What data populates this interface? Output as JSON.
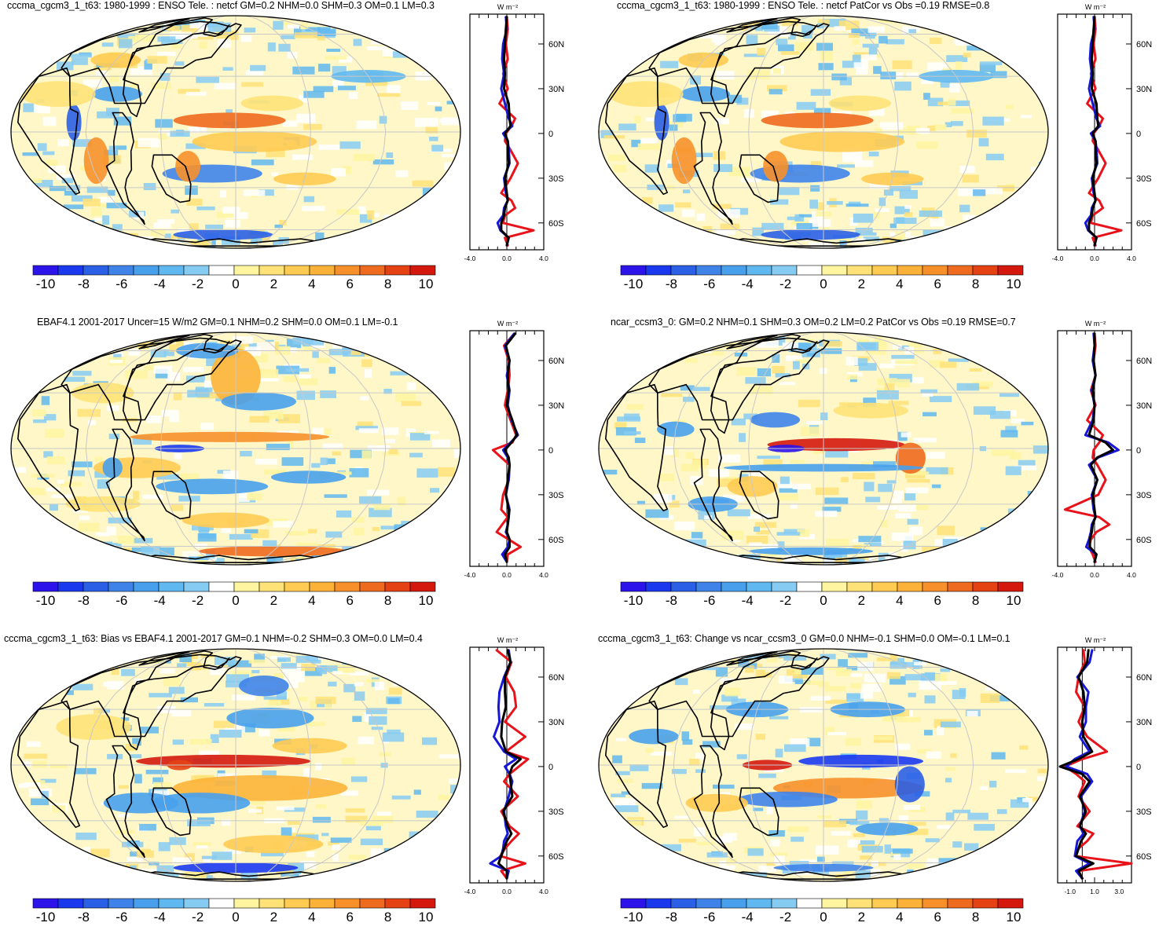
{
  "colors": {
    "scale": [
      "#2c13ea",
      "#1a39ef",
      "#2a5fe6",
      "#3f83e9",
      "#48a0ec",
      "#60b8f0",
      "#86cbf2",
      "#ffffff",
      "#fff4a0",
      "#ffe277",
      "#ffcb52",
      "#fcb238",
      "#f7902a",
      "#ee6a1e",
      "#e54214",
      "#d4180d"
    ],
    "obs_line": "#e8131a",
    "model_line": "#1717d8",
    "diff_line": "#000000",
    "coast": "#000000",
    "grid": "#c8c8c8"
  },
  "chart_data": [
    {
      "type": "heatmap",
      "title": "cccma_cgcm3_1_t63: 1980-1999 : ENSO Tele. : netcf GM=0.2 NHM=0.0 SHM=0.3 OM=0.1 LM=0.3",
      "colorbar_ticks": [
        "-10",
        "-8",
        "-6",
        "-4",
        "-2",
        "0",
        "2",
        "4",
        "6",
        "8",
        "10"
      ],
      "zonal": {
        "unit": "W m⁻²",
        "xlim": [
          -4.0,
          4.0
        ],
        "xticks": [
          "-4.0",
          "0.0",
          "4.0"
        ],
        "lat_ticks": [
          "60N",
          "30N",
          "0",
          "30S",
          "60S"
        ],
        "lat": [
          78,
          70,
          60,
          50,
          40,
          30,
          20,
          10,
          5,
          0,
          -5,
          -10,
          -20,
          -30,
          -40,
          -45,
          -50,
          -55,
          -60,
          -65,
          -70,
          -75
        ],
        "series": [
          {
            "name": "obs",
            "values": [
              0.0,
              0.1,
              -0.1,
              0.1,
              -0.4,
              0.1,
              -0.8,
              0.9,
              0.5,
              -0.1,
              -0.2,
              0.3,
              1.2,
              0.4,
              -0.6,
              0.5,
              0.9,
              -0.2,
              -0.4,
              2.9,
              -0.2,
              0.1
            ]
          },
          {
            "name": "model",
            "values": [
              -0.1,
              0.0,
              -0.4,
              -0.5,
              -0.3,
              -0.6,
              -0.2,
              0.2,
              0.6,
              -0.4,
              0.1,
              0.2,
              0.3,
              -0.3,
              -0.1,
              0.1,
              -0.3,
              -0.4,
              -1.0,
              -0.7,
              0.2,
              0.0
            ]
          },
          {
            "name": "difference",
            "values": [
              0.0,
              -0.1,
              -0.2,
              -0.3,
              -0.2,
              -0.3,
              0.2,
              0.3,
              0.4,
              -0.2,
              0.1,
              0.1,
              0.2,
              -0.2,
              0.0,
              0.1,
              -0.2,
              -0.3,
              -0.6,
              -0.6,
              0.2,
              0.0
            ]
          }
        ]
      }
    },
    {
      "type": "heatmap",
      "title": "cccma_cgcm3_1_t63: 1980-1999 : ENSO Tele. : netcf PatCor vs Obs =0.19 RMSE=0.8",
      "colorbar_ticks": [
        "-10",
        "-8",
        "-6",
        "-4",
        "-2",
        "0",
        "2",
        "4",
        "6",
        "8",
        "10"
      ],
      "zonal": {
        "unit": "W m⁻²",
        "xlim": [
          -4.0,
          4.0
        ],
        "xticks": [
          "-4.0",
          "0.0",
          "4.0"
        ],
        "lat_ticks": [
          "60N",
          "30N",
          "0",
          "30S",
          "60S"
        ],
        "lat": [
          78,
          70,
          60,
          50,
          40,
          30,
          20,
          10,
          5,
          0,
          -5,
          -10,
          -20,
          -30,
          -40,
          -45,
          -50,
          -55,
          -60,
          -65,
          -70,
          -75
        ],
        "series": [
          {
            "name": "obs",
            "values": [
              0.0,
              0.1,
              -0.1,
              0.1,
              -0.4,
              0.1,
              -0.8,
              0.9,
              0.5,
              -0.1,
              -0.2,
              0.3,
              1.2,
              0.4,
              -0.6,
              0.5,
              0.9,
              -0.2,
              -0.4,
              2.9,
              -0.2,
              0.1
            ]
          },
          {
            "name": "model",
            "values": [
              -0.1,
              0.0,
              -0.4,
              -0.5,
              -0.3,
              -0.6,
              -0.2,
              0.2,
              0.6,
              -0.4,
              0.1,
              0.2,
              0.3,
              -0.3,
              -0.1,
              0.1,
              -0.3,
              -0.4,
              -1.0,
              -0.7,
              0.2,
              0.0
            ]
          },
          {
            "name": "difference",
            "values": [
              0.0,
              -0.1,
              -0.2,
              -0.3,
              -0.2,
              -0.3,
              0.2,
              0.3,
              0.4,
              -0.2,
              0.1,
              0.1,
              0.2,
              -0.2,
              0.0,
              0.1,
              -0.2,
              -0.3,
              -0.6,
              -0.6,
              0.2,
              0.0
            ]
          }
        ]
      }
    },
    {
      "type": "heatmap",
      "title": "EBAF4.1 2001-2017 Uncer=15 W/m2 GM=0.1 NHM=0.2 SHM=0.0 OM=0.1 LM=-0.1",
      "colorbar_ticks": [
        "-10",
        "-8",
        "-6",
        "-4",
        "-2",
        "0",
        "2",
        "4",
        "6",
        "8",
        "10"
      ],
      "zonal": {
        "unit": "W m⁻²",
        "xlim": [
          -4.0,
          4.0
        ],
        "xticks": [
          "-4.0",
          "0.0",
          "4.0"
        ],
        "lat_ticks": [
          "60N",
          "30N",
          "0",
          "30S",
          "60S"
        ],
        "lat": [
          78,
          70,
          60,
          50,
          40,
          30,
          20,
          10,
          5,
          0,
          -5,
          -10,
          -20,
          -30,
          -40,
          -45,
          -50,
          -55,
          -60,
          -65,
          -70,
          -75
        ],
        "series": [
          {
            "name": "obs",
            "values": [
              0.8,
              -0.3,
              0.2,
              0.3,
              0.1,
              -0.2,
              0.4,
              1.0,
              0.6,
              -1.5,
              -0.6,
              0.3,
              0.2,
              -0.4,
              -0.6,
              0.1,
              -0.5,
              -1.1,
              0.2,
              1.5,
              0.1,
              0.0
            ]
          },
          {
            "name": "model",
            "values": [
              0.8,
              -0.2,
              0.3,
              0.0,
              0.3,
              0.1,
              0.5,
              1.2,
              0.4,
              -0.4,
              0.1,
              0.3,
              0.2,
              -0.1,
              0.3,
              0.2,
              0.1,
              -0.1,
              0.3,
              0.1,
              -0.5,
              0.0
            ]
          },
          {
            "name": "difference",
            "values": [
              0.9,
              -0.1,
              0.3,
              0.1,
              0.2,
              0.0,
              0.6,
              1.1,
              0.5,
              -0.2,
              0.2,
              0.3,
              0.1,
              -0.1,
              0.2,
              0.2,
              0.1,
              0.0,
              0.3,
              0.3,
              -0.2,
              0.0
            ]
          }
        ]
      }
    },
    {
      "type": "heatmap",
      "title": "ncar_ccsm3_0: GM=0.2 NHM=0.1 SHM=0.3 OM=0.2 LM=0.2 PatCor vs Obs =0.19 RMSE=0.7",
      "colorbar_ticks": [
        "-10",
        "-8",
        "-6",
        "-4",
        "-2",
        "0",
        "2",
        "4",
        "6",
        "8",
        "10"
      ],
      "zonal": {
        "unit": "W m⁻²",
        "xlim": [
          -4.0,
          4.0
        ],
        "xticks": [
          "-4.0",
          "0.0",
          "4.0"
        ],
        "lat_ticks": [
          "60N",
          "30N",
          "0",
          "30S",
          "60S"
        ],
        "lat": [
          78,
          70,
          60,
          50,
          40,
          30,
          20,
          10,
          5,
          0,
          -5,
          -10,
          -20,
          -30,
          -40,
          -45,
          -50,
          -55,
          -60,
          -65,
          -70,
          -75
        ],
        "series": [
          {
            "name": "obs",
            "values": [
              0.0,
              0.1,
              -0.1,
              0.1,
              -0.4,
              0.1,
              -0.8,
              0.9,
              0.5,
              -0.1,
              -0.2,
              0.3,
              1.2,
              0.4,
              -3.2,
              0.5,
              1.6,
              0.2,
              -0.4,
              -0.6,
              -0.2,
              0.1
            ]
          },
          {
            "name": "model",
            "values": [
              -0.1,
              0.0,
              -0.2,
              0.1,
              -0.3,
              0.0,
              -0.2,
              -1.0,
              1.5,
              2.6,
              0.4,
              -0.6,
              0.3,
              -0.3,
              -0.1,
              0.1,
              -0.3,
              -0.4,
              -0.6,
              -0.9,
              0.2,
              0.0
            ]
          },
          {
            "name": "difference",
            "values": [
              0.0,
              0.0,
              -0.1,
              0.1,
              -0.2,
              0.0,
              -0.1,
              -0.6,
              1.2,
              2.0,
              0.3,
              -0.4,
              0.3,
              -0.2,
              0.0,
              0.1,
              -0.2,
              -0.3,
              -0.5,
              -0.5,
              0.2,
              0.0
            ]
          }
        ]
      }
    },
    {
      "type": "heatmap",
      "title": "cccma_cgcm3_1_t63: Bias vs EBAF4.1 2001-2017 GM=0.1 NHM=-0.2 SHM=0.3 OM=0.0 LM=0.4",
      "colorbar_ticks": [
        "-10",
        "-8",
        "-6",
        "-4",
        "-2",
        "0",
        "2",
        "4",
        "6",
        "8",
        "10"
      ],
      "zonal": {
        "unit": "W m⁻²",
        "xlim": [
          -4.0,
          4.0
        ],
        "xticks": [
          "-4.0",
          "0.0",
          "4.0"
        ],
        "lat_ticks": [
          "60N",
          "30N",
          "0",
          "30S",
          "60S"
        ],
        "lat": [
          78,
          70,
          60,
          50,
          40,
          30,
          20,
          10,
          5,
          0,
          -5,
          -10,
          -20,
          -30,
          -40,
          -45,
          -50,
          -55,
          -60,
          -65,
          -70,
          -75
        ],
        "series": [
          {
            "name": "obs",
            "values": [
              -1.1,
              0.5,
              -0.1,
              0.8,
              1.0,
              -0.2,
              2.0,
              -0.1,
              2.3,
              1.3,
              0.3,
              -0.3,
              1.2,
              -0.6,
              0.3,
              1.3,
              0.5,
              -0.2,
              -0.7,
              2.0,
              -0.6,
              0.0
            ]
          },
          {
            "name": "model",
            "values": [
              0.2,
              0.4,
              -0.3,
              -0.8,
              -0.9,
              -0.8,
              -1.4,
              -0.3,
              1.0,
              -0.2,
              0.3,
              0.6,
              0.2,
              -0.3,
              -0.1,
              0.1,
              -0.3,
              -0.4,
              -0.6,
              -1.8,
              0.2,
              0.0
            ]
          },
          {
            "name": "difference",
            "values": [
              0.1,
              0.4,
              -0.2,
              -0.2,
              -0.1,
              -0.5,
              -0.6,
              -0.1,
              1.5,
              0.6,
              0.3,
              0.4,
              0.6,
              -0.4,
              0.1,
              0.5,
              0.0,
              -0.3,
              -0.6,
              -0.9,
              0.0,
              0.0
            ]
          }
        ]
      }
    },
    {
      "type": "heatmap",
      "title": "cccma_cgcm3_1_t63: Change vs ncar_ccsm3_0 GM=0.0 NHM=-0.1 SHM=0.0 OM=-0.1 LM=0.1",
      "colorbar_ticks": [
        "-10",
        "-8",
        "-6",
        "-4",
        "-2",
        "0",
        "2",
        "4",
        "6",
        "8",
        "10"
      ],
      "zonal": {
        "unit": "W m⁻²",
        "xlim": [
          -2.0,
          4.0
        ],
        "xticks": [
          "-1.0",
          "1.0",
          "3.0"
        ],
        "lat_ticks": [
          "60N",
          "30N",
          "0",
          "30S",
          "60S"
        ],
        "lat": [
          78,
          70,
          60,
          50,
          40,
          30,
          20,
          10,
          5,
          0,
          -5,
          -10,
          -20,
          -30,
          -40,
          -45,
          -50,
          -55,
          -60,
          -65,
          -70,
          -75
        ],
        "series": [
          {
            "name": "obs",
            "values": [
              0.1,
              0.2,
              -0.3,
              -0.5,
              0.2,
              -0.3,
              0.4,
              2.0,
              0.0,
              -1.4,
              -0.5,
              0.2,
              -0.3,
              0.6,
              -0.4,
              0.9,
              0.4,
              -0.3,
              -0.6,
              4.0,
              -0.3,
              0.0
            ]
          },
          {
            "name": "model",
            "values": [
              0.8,
              0.6,
              -0.4,
              0.5,
              0.3,
              0.3,
              -0.2,
              0.6,
              -0.6,
              -1.3,
              0.4,
              0.8,
              -0.1,
              0.2,
              -0.2,
              0.1,
              -0.4,
              -0.5,
              -0.6,
              0.6,
              -0.5,
              0.0
            ]
          },
          {
            "name": "difference",
            "values": [
              0.5,
              0.4,
              -0.3,
              0.1,
              0.2,
              0.0,
              0.1,
              0.8,
              -0.3,
              -1.8,
              0.0,
              0.6,
              -0.2,
              0.3,
              -0.2,
              0.3,
              -0.1,
              -0.3,
              -0.5,
              0.9,
              -0.3,
              0.0
            ]
          }
        ]
      }
    }
  ]
}
